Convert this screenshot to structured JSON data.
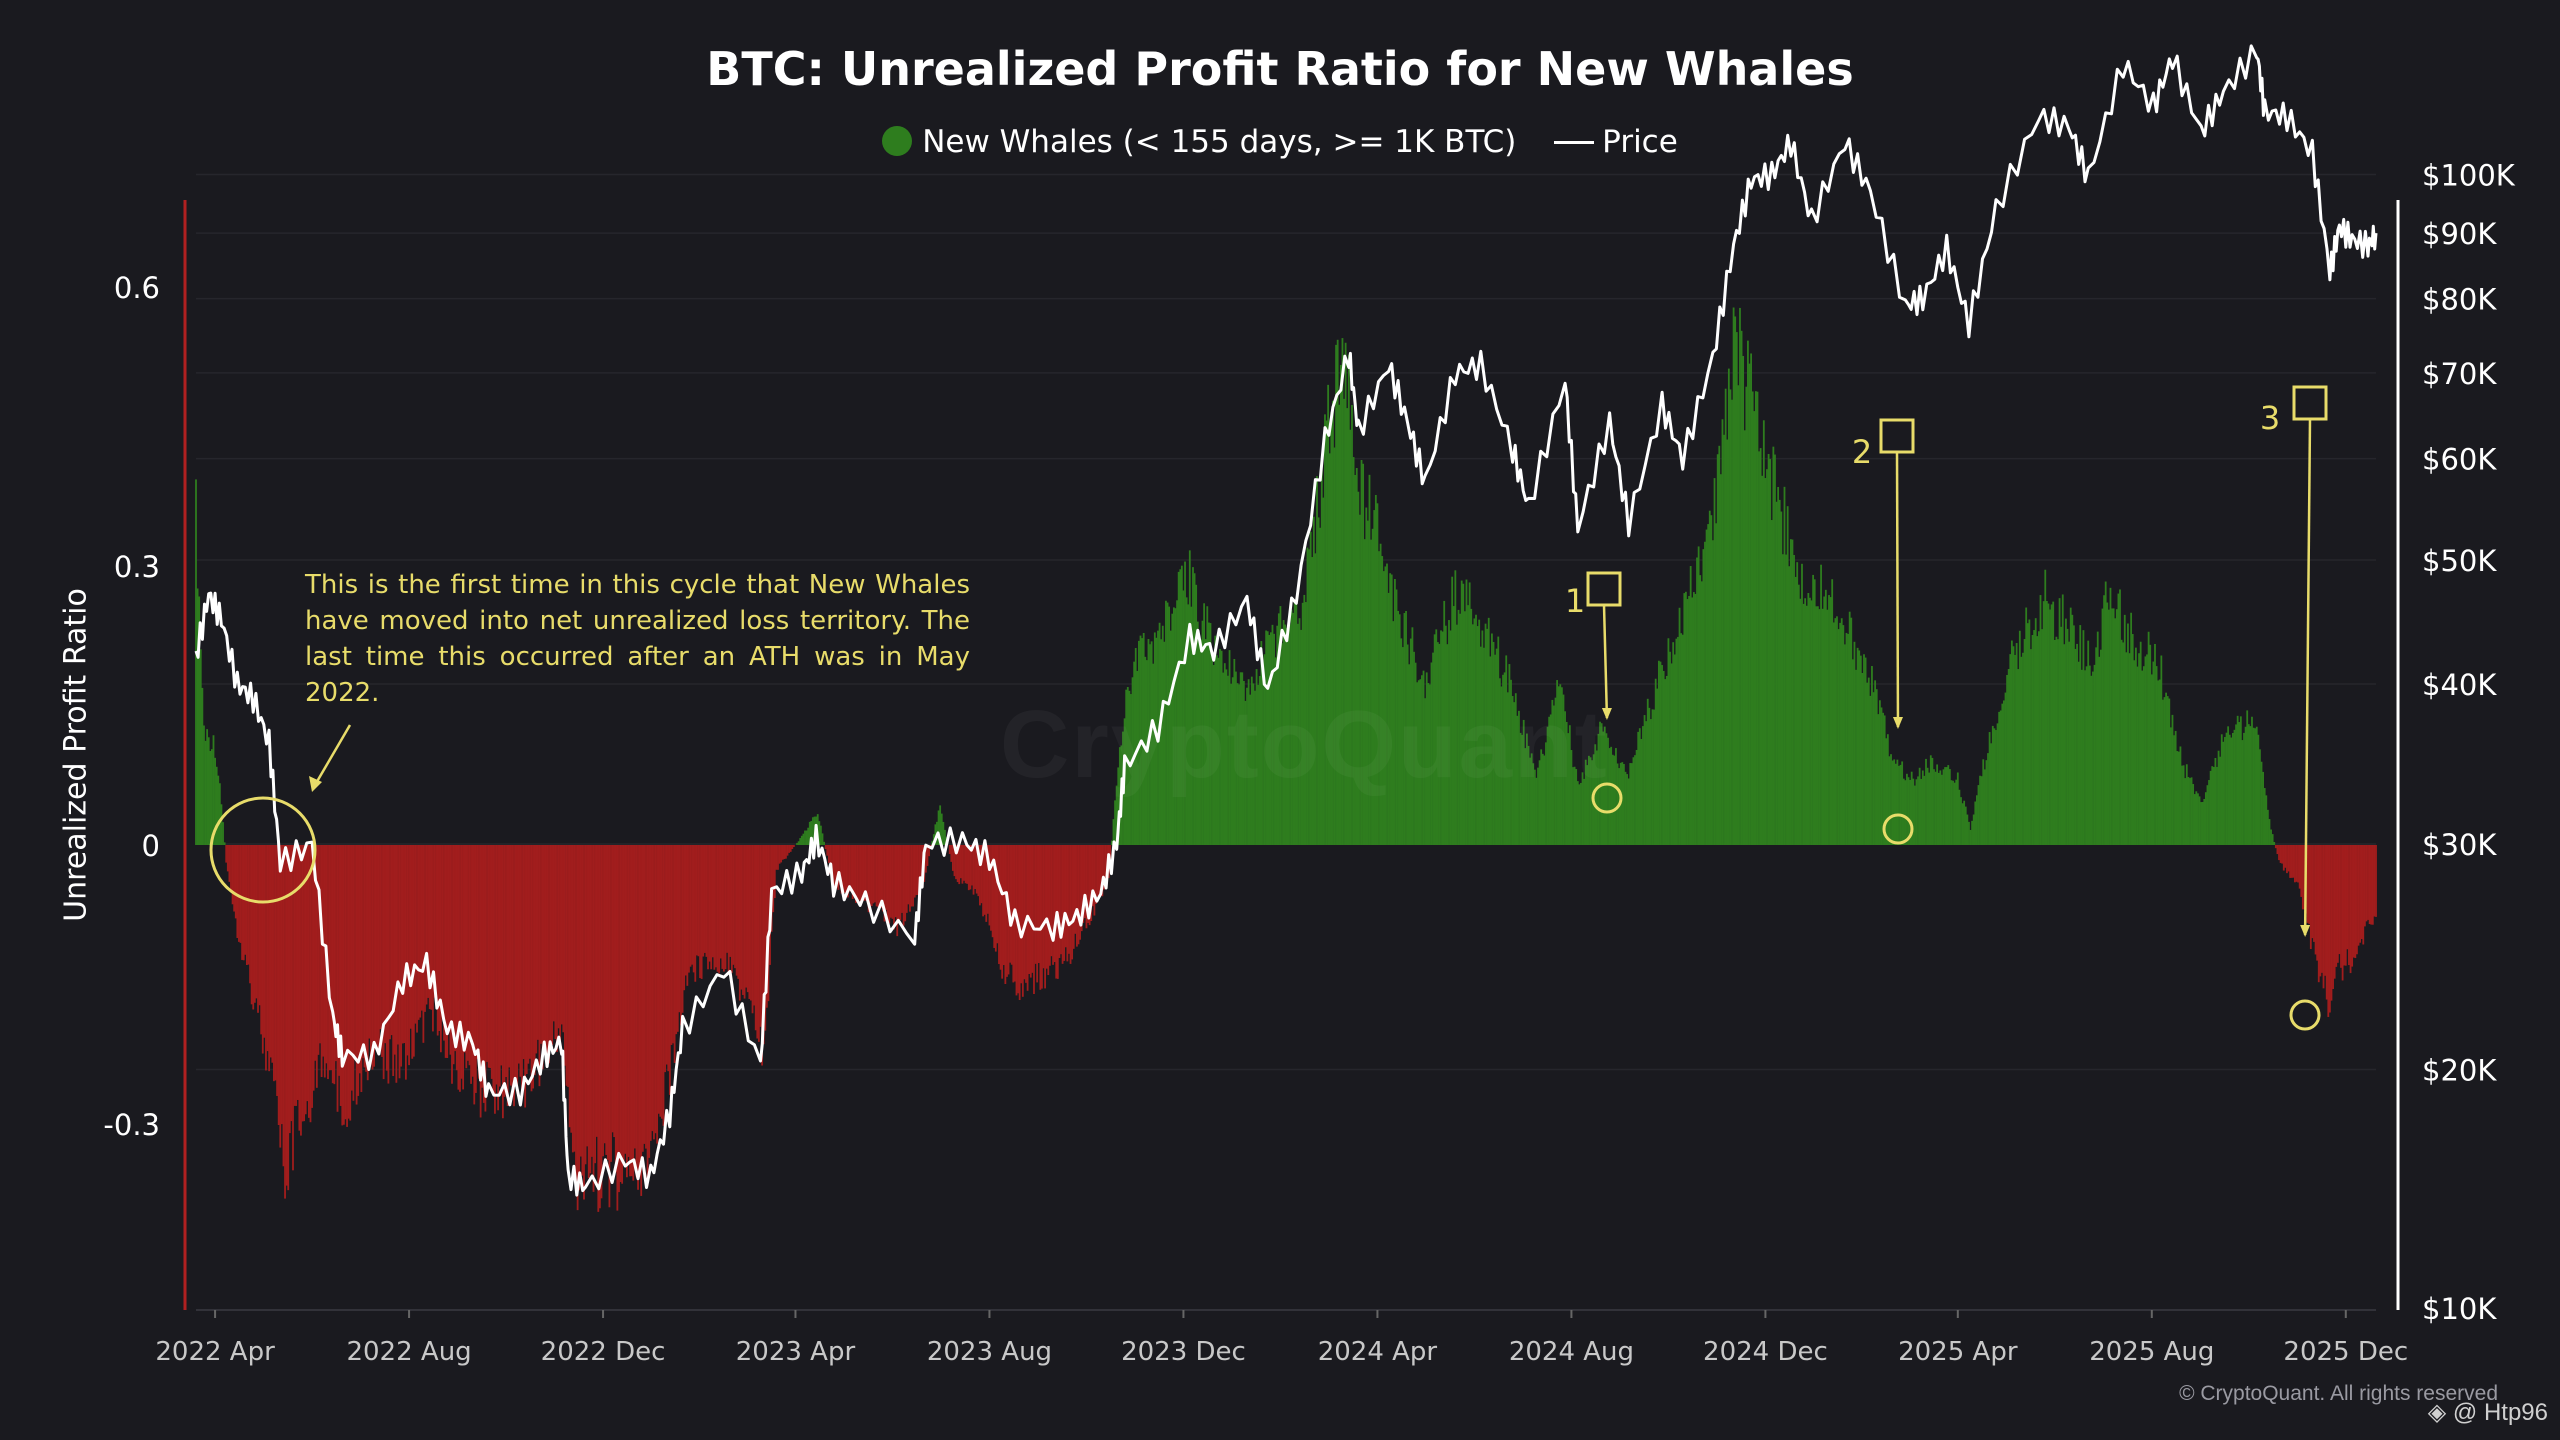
{
  "chart_data": {
    "type": "area",
    "title": "BTC: Unrealized Profit Ratio for New Whales",
    "legend": [
      {
        "label": "New Whales (< 155 days, >= 1K BTC)",
        "marker": "dot",
        "color": "#2e7d1e"
      },
      {
        "label": "Price",
        "marker": "line",
        "color": "#ffffff"
      }
    ],
    "legend_position": "top-center",
    "ylabel": "Unrealized Profit Ratio",
    "y_left": {
      "ticks": [
        0.6,
        0.3,
        0,
        -0.3
      ],
      "tick_labels": [
        "0.6",
        "0.3",
        "0",
        "-0.3"
      ],
      "range": [
        -0.5,
        0.69
      ]
    },
    "y_right": {
      "scale": "log",
      "ticks": [
        100000,
        90000,
        80000,
        70000,
        60000,
        50000,
        40000,
        30000,
        20000,
        10000
      ],
      "tick_labels": [
        "$100K",
        "$90K",
        "$80K",
        "$70K",
        "$60K",
        "$50K",
        "$40K",
        "$30K",
        "$20K",
        "$10K"
      ]
    },
    "x": {
      "start": "2022-03-20",
      "end": "2025-12-20",
      "tick_dates": [
        "2022-04-01",
        "2022-08-01",
        "2022-12-01",
        "2023-04-01",
        "2023-08-01",
        "2023-12-01",
        "2024-04-01",
        "2024-08-01",
        "2024-12-01",
        "2025-04-01",
        "2025-08-01",
        "2025-12-01"
      ],
      "tick_labels": [
        "2022 Apr",
        "2022 Aug",
        "2022 Dec",
        "2023 Apr",
        "2023 Aug",
        "2023 Dec",
        "2024 Apr",
        "2024 Aug",
        "2024 Dec",
        "2025 Apr",
        "2025 Aug",
        "2025 Dec"
      ]
    },
    "series": [
      {
        "name": "New Whales (< 155 days, >= 1K BTC)",
        "positive_color": "#2e7d1e",
        "negative_color": "#a11d1d",
        "points": [
          [
            "2022-03-20",
            0.4
          ],
          [
            "2022-03-25",
            0.14
          ],
          [
            "2022-04-01",
            0.12
          ],
          [
            "2022-04-05",
            0.05
          ],
          [
            "2022-04-08",
            -0.02
          ],
          [
            "2022-04-15",
            -0.1
          ],
          [
            "2022-04-25",
            -0.18
          ],
          [
            "2022-05-08",
            -0.3
          ],
          [
            "2022-05-15",
            -0.4
          ],
          [
            "2022-05-25",
            -0.33
          ],
          [
            "2022-06-10",
            -0.25
          ],
          [
            "2022-06-20",
            -0.32
          ],
          [
            "2022-07-10",
            -0.24
          ],
          [
            "2022-07-25",
            -0.27
          ],
          [
            "2022-08-15",
            -0.2
          ],
          [
            "2022-09-01",
            -0.28
          ],
          [
            "2022-09-20",
            -0.3
          ],
          [
            "2022-10-10",
            -0.29
          ],
          [
            "2022-10-25",
            -0.26
          ],
          [
            "2022-11-05",
            -0.22
          ],
          [
            "2022-11-15",
            -0.42
          ],
          [
            "2022-12-01",
            -0.39
          ],
          [
            "2022-12-20",
            -0.4
          ],
          [
            "2023-01-05",
            -0.36
          ],
          [
            "2023-01-15",
            -0.24
          ],
          [
            "2023-01-25",
            -0.15
          ],
          [
            "2023-02-15",
            -0.14
          ],
          [
            "2023-03-05",
            -0.2
          ],
          [
            "2023-03-12",
            -0.26
          ],
          [
            "2023-03-20",
            -0.03
          ],
          [
            "2023-04-05",
            0.01
          ],
          [
            "2023-04-15",
            0.04
          ],
          [
            "2023-04-25",
            -0.05
          ],
          [
            "2023-05-15",
            -0.07
          ],
          [
            "2023-06-05",
            -0.1
          ],
          [
            "2023-06-20",
            -0.05
          ],
          [
            "2023-07-01",
            0.05
          ],
          [
            "2023-07-10",
            -0.04
          ],
          [
            "2023-07-25",
            -0.06
          ],
          [
            "2023-08-01",
            -0.1
          ],
          [
            "2023-08-10",
            -0.15
          ],
          [
            "2023-08-20",
            -0.17
          ],
          [
            "2023-09-10",
            -0.15
          ],
          [
            "2023-09-25",
            -0.12
          ],
          [
            "2023-10-15",
            -0.04
          ],
          [
            "2023-10-22",
            0.12
          ],
          [
            "2023-10-30",
            0.22
          ],
          [
            "2023-11-15",
            0.25
          ],
          [
            "2023-12-05",
            0.32
          ],
          [
            "2023-12-20",
            0.24
          ],
          [
            "2024-01-10",
            0.18
          ],
          [
            "2024-01-25",
            0.25
          ],
          [
            "2024-02-15",
            0.3
          ],
          [
            "2024-03-01",
            0.5
          ],
          [
            "2024-03-10",
            0.6
          ],
          [
            "2024-03-20",
            0.43
          ],
          [
            "2024-04-01",
            0.38
          ],
          [
            "2024-04-15",
            0.27
          ],
          [
            "2024-05-01",
            0.2
          ],
          [
            "2024-05-20",
            0.3
          ],
          [
            "2024-06-05",
            0.27
          ],
          [
            "2024-06-25",
            0.19
          ],
          [
            "2024-07-10",
            0.08
          ],
          [
            "2024-07-25",
            0.2
          ],
          [
            "2024-08-05",
            0.07
          ],
          [
            "2024-08-20",
            0.14
          ],
          [
            "2024-09-05",
            0.08
          ],
          [
            "2024-09-25",
            0.2
          ],
          [
            "2024-10-15",
            0.3
          ],
          [
            "2024-10-30",
            0.4
          ],
          [
            "2024-11-12",
            0.63
          ],
          [
            "2024-11-25",
            0.5
          ],
          [
            "2024-12-10",
            0.42
          ],
          [
            "2024-12-20",
            0.32
          ],
          [
            "2025-01-10",
            0.3
          ],
          [
            "2025-01-25",
            0.25
          ],
          [
            "2025-02-05",
            0.2
          ],
          [
            "2025-02-20",
            0.1
          ],
          [
            "2025-03-05",
            0.08
          ],
          [
            "2025-03-15",
            0.1
          ],
          [
            "2025-04-01",
            0.08
          ],
          [
            "2025-04-09",
            0.02
          ],
          [
            "2025-04-20",
            0.12
          ],
          [
            "2025-05-05",
            0.22
          ],
          [
            "2025-05-25",
            0.3
          ],
          [
            "2025-06-10",
            0.26
          ],
          [
            "2025-06-25",
            0.22
          ],
          [
            "2025-07-05",
            0.3
          ],
          [
            "2025-07-20",
            0.25
          ],
          [
            "2025-08-05",
            0.22
          ],
          [
            "2025-08-20",
            0.1
          ],
          [
            "2025-09-01",
            0.05
          ],
          [
            "2025-09-15",
            0.13
          ],
          [
            "2025-10-05",
            0.15
          ],
          [
            "2025-10-15",
            0.02
          ],
          [
            "2025-10-20",
            -0.02
          ],
          [
            "2025-11-01",
            -0.05
          ],
          [
            "2025-11-10",
            -0.12
          ],
          [
            "2025-11-20",
            -0.19
          ],
          [
            "2025-11-25",
            -0.15
          ],
          [
            "2025-12-05",
            -0.14
          ],
          [
            "2025-12-15",
            -0.1
          ],
          [
            "2025-12-20",
            -0.08
          ]
        ]
      },
      {
        "name": "Price",
        "color": "#ffffff",
        "points": [
          [
            "2022-03-20",
            42000
          ],
          [
            "2022-03-28",
            47000
          ],
          [
            "2022-04-05",
            45000
          ],
          [
            "2022-04-15",
            40000
          ],
          [
            "2022-04-25",
            39000
          ],
          [
            "2022-05-05",
            36000
          ],
          [
            "2022-05-12",
            29000
          ],
          [
            "2022-06-01",
            30000
          ],
          [
            "2022-06-14",
            22000
          ],
          [
            "2022-06-20",
            20500
          ],
          [
            "2022-07-10",
            20500
          ],
          [
            "2022-07-28",
            23500
          ],
          [
            "2022-08-12",
            24200
          ],
          [
            "2022-08-25",
            21500
          ],
          [
            "2022-09-10",
            21000
          ],
          [
            "2022-09-20",
            19200
          ],
          [
            "2022-10-10",
            19200
          ],
          [
            "2022-10-25",
            20500
          ],
          [
            "2022-11-05",
            21000
          ],
          [
            "2022-11-09",
            16500
          ],
          [
            "2022-11-20",
            16200
          ],
          [
            "2022-12-15",
            17000
          ],
          [
            "2022-12-31",
            16500
          ],
          [
            "2023-01-12",
            18500
          ],
          [
            "2023-01-20",
            21500
          ],
          [
            "2023-02-15",
            24000
          ],
          [
            "2023-03-10",
            20200
          ],
          [
            "2023-03-17",
            27500
          ],
          [
            "2023-04-05",
            28500
          ],
          [
            "2023-04-14",
            30300
          ],
          [
            "2023-04-25",
            28000
          ],
          [
            "2023-05-15",
            27000
          ],
          [
            "2023-06-15",
            25300
          ],
          [
            "2023-06-22",
            30000
          ],
          [
            "2023-07-15",
            30200
          ],
          [
            "2023-08-01",
            29300
          ],
          [
            "2023-08-17",
            26000
          ],
          [
            "2023-09-10",
            25800
          ],
          [
            "2023-09-25",
            26300
          ],
          [
            "2023-10-10",
            27500
          ],
          [
            "2023-10-20",
            30000
          ],
          [
            "2023-10-25",
            34500
          ],
          [
            "2023-11-15",
            37000
          ],
          [
            "2023-12-05",
            43500
          ],
          [
            "2023-12-20",
            42500
          ],
          [
            "2024-01-10",
            46500
          ],
          [
            "2024-01-23",
            39500
          ],
          [
            "2024-02-10",
            47000
          ],
          [
            "2024-02-28",
            62000
          ],
          [
            "2024-03-14",
            72500
          ],
          [
            "2024-03-20",
            63000
          ],
          [
            "2024-04-08",
            71000
          ],
          [
            "2024-04-20",
            64000
          ],
          [
            "2024-05-01",
            57500
          ],
          [
            "2024-05-20",
            70000
          ],
          [
            "2024-06-05",
            71000
          ],
          [
            "2024-06-25",
            61000
          ],
          [
            "2024-07-05",
            55000
          ],
          [
            "2024-07-28",
            69000
          ],
          [
            "2024-08-05",
            53000
          ],
          [
            "2024-08-25",
            64000
          ],
          [
            "2024-09-06",
            53500
          ],
          [
            "2024-09-27",
            66000
          ],
          [
            "2024-10-10",
            60000
          ],
          [
            "2024-10-29",
            72000
          ],
          [
            "2024-11-11",
            88000
          ],
          [
            "2024-11-22",
            99000
          ],
          [
            "2024-12-05",
            100000
          ],
          [
            "2024-12-17",
            106000
          ],
          [
            "2024-12-30",
            92000
          ],
          [
            "2025-01-20",
            106000
          ],
          [
            "2025-02-05",
            97000
          ],
          [
            "2025-02-27",
            79000
          ],
          [
            "2025-03-10",
            80000
          ],
          [
            "2025-03-25",
            87500
          ],
          [
            "2025-04-08",
            76500
          ],
          [
            "2025-04-25",
            94000
          ],
          [
            "2025-05-22",
            111000
          ],
          [
            "2025-06-10",
            109000
          ],
          [
            "2025-06-22",
            99500
          ],
          [
            "2025-07-14",
            122000
          ],
          [
            "2025-08-02",
            113000
          ],
          [
            "2025-08-14",
            123500
          ],
          [
            "2025-09-01",
            108000
          ],
          [
            "2025-09-15",
            116000
          ],
          [
            "2025-10-06",
            125000
          ],
          [
            "2025-10-11",
            112000
          ],
          [
            "2025-10-25",
            111000
          ],
          [
            "2025-11-10",
            104000
          ],
          [
            "2025-11-21",
            84000
          ],
          [
            "2025-11-27",
            91000
          ],
          [
            "2025-12-05",
            89000
          ],
          [
            "2025-12-15",
            88000
          ],
          [
            "2025-12-20",
            90000
          ]
        ]
      }
    ],
    "annotations": [
      {
        "type": "text",
        "text": "This is the first time in this cycle that New Whales have moved into net unrealized loss territory. The last time this occurred after an ATH was in May 2022.",
        "color": "#e8dc6a"
      },
      {
        "type": "circle",
        "date": "2022-04-15",
        "value": 0.0
      },
      {
        "type": "marker",
        "label": "1",
        "date": "2024-08-05",
        "price": 53000,
        "ratio": 0.05
      },
      {
        "type": "marker",
        "label": "2",
        "date": "2025-02-27",
        "price": 79000,
        "ratio": 0.02
      },
      {
        "type": "marker",
        "label": "3",
        "date": "2025-11-21",
        "price": 84000,
        "ratio": -0.19
      }
    ]
  },
  "title": "BTC: Unrealized Profit Ratio for New Whales",
  "legend": {
    "whales_label": "New Whales (< 155 days, >= 1K BTC)",
    "price_label": "Price"
  },
  "ylabel": "Unrealized Profit Ratio",
  "note": "This is the first time in this cycle that New Whales have moved into net unrealized loss territory. The last time this occurred after an ATH was in May 2022.",
  "watermark": "CryptoQuant",
  "copyright": "© CryptoQuant. All rights reserved",
  "handle": "◈ @ Htp96",
  "colors": {
    "green": "#2e7d1e",
    "red": "#a11d1d",
    "annotation": "#e8dc6a",
    "background": "#1a1a1f"
  }
}
